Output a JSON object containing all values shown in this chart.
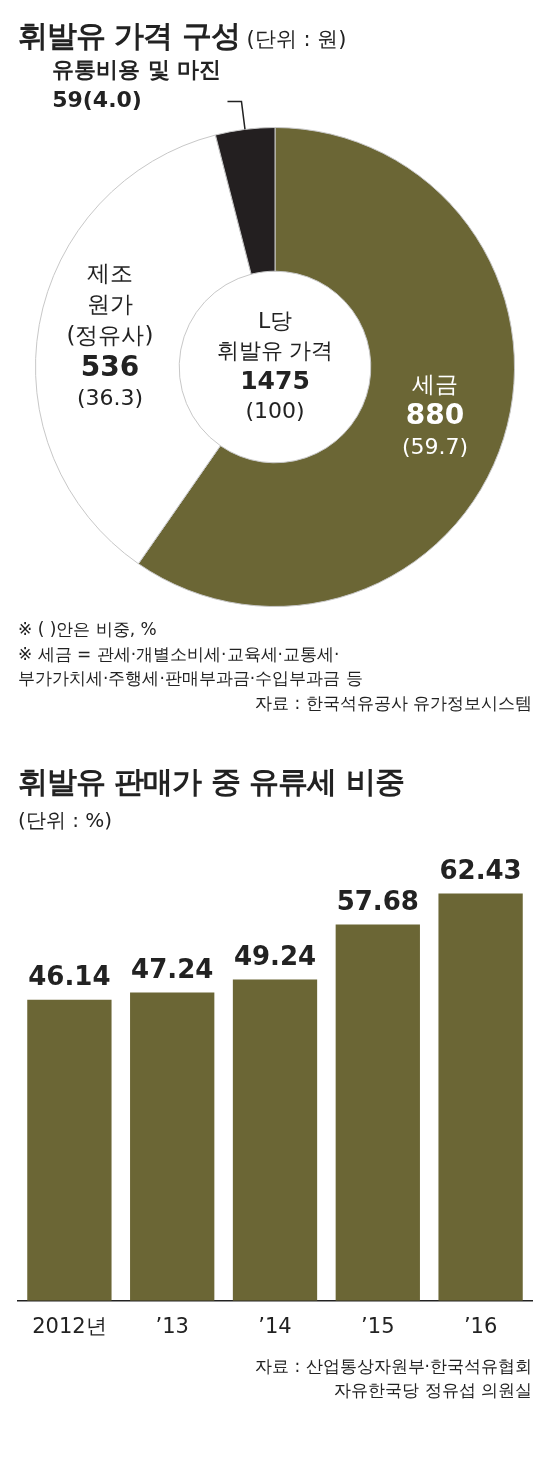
{
  "chart_data": [
    {
      "type": "donut",
      "title": "휘발유 가격 구성",
      "subtitle": "(단위 : 원)",
      "categories": [
        "세금",
        "제조 원가 (정유사)",
        "유통비용 및 마진"
      ],
      "values": [
        880,
        536,
        59
      ],
      "value_labels": [
        "880\n(59.7)",
        "536\n(36.3)",
        "59(4.0)"
      ],
      "colors": [
        "#6b6635",
        "#ffffff",
        "#231f20"
      ],
      "legend": false,
      "annotations": [
        "L당\n휘발유 가격\n1475\n(100)",
        "※ (  )안은 비중, %",
        "※ 세금 = 관세·개별소비세·교육세·교통세·\n부가가치세·주행세·판매부과금·수입부과금 등",
        "자료 : 한국석유공사 유가정보시스템"
      ]
    },
    {
      "type": "bar",
      "title": "휘발유 판매가 중 유류세 비중",
      "subtitle": "(단위 : %)",
      "categories": [
        "2012년",
        "’13",
        "’14",
        "’15",
        "’16"
      ],
      "values": [
        46.14,
        47.24,
        49.24,
        57.68,
        62.43
      ],
      "color": "#6b6635",
      "data_labels": true,
      "legend": false,
      "grid": false,
      "tick_labels": "x",
      "annotations": [
        "자료 : 산업통상자원부·한국석유협회\n자유한국당 정유섭 의원실"
      ]
    }
  ]
}
